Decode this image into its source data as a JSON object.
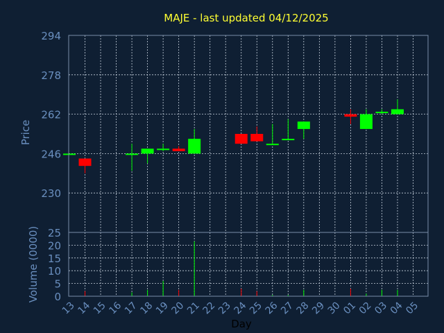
{
  "colors": {
    "background": "#0f1f33",
    "up": "#00ff00",
    "down": "#ff0000",
    "title": "#ffff33",
    "axis_text": "#6a8fbf",
    "grid": "#c8d2de"
  },
  "chart_data": {
    "type": "candlestick",
    "title": "MAJE - last updated 04/12/2025",
    "xlabel": "Day",
    "ylabel_price": "Price",
    "ylabel_volume": "Volume (0000)",
    "price_ylim": [
      214,
      294
    ],
    "price_ticks": [
      294,
      278,
      262,
      246,
      230
    ],
    "volume_ylim": [
      0,
      25
    ],
    "volume_ticks": [
      25,
      20,
      15,
      10,
      5,
      0
    ],
    "grid": true,
    "x_ticks": [
      "13",
      "14",
      "15",
      "16",
      "17",
      "18",
      "19",
      "20",
      "21",
      "22",
      "23",
      "24",
      "25",
      "26",
      "27",
      "28",
      "29",
      "30",
      "01",
      "02",
      "03",
      "04",
      "05"
    ],
    "candles": [
      {
        "day": "13",
        "open": 246,
        "close": 246,
        "high": 246,
        "low": 246,
        "volume": 0.0
      },
      {
        "day": "14",
        "open": 244,
        "close": 241,
        "high": 244,
        "low": 238,
        "volume": 2.0
      },
      {
        "day": "17",
        "open": 246,
        "close": 246,
        "high": 250,
        "low": 239,
        "volume": 1.5
      },
      {
        "day": "18",
        "open": 246,
        "close": 248,
        "high": 248,
        "low": 242,
        "volume": 2.5
      },
      {
        "day": "19",
        "open": 248,
        "close": 248,
        "high": 250,
        "low": 247,
        "volume": 6.0
      },
      {
        "day": "20",
        "open": 248,
        "close": 247,
        "high": 249,
        "low": 247,
        "volume": 2.5
      },
      {
        "day": "21",
        "open": 246,
        "close": 252,
        "high": 256,
        "low": 246,
        "volume": 21.5
      },
      {
        "day": "24",
        "open": 254,
        "close": 250,
        "high": 254,
        "low": 250,
        "volume": 3.0
      },
      {
        "day": "25",
        "open": 254,
        "close": 251,
        "high": 257,
        "low": 251,
        "volume": 2.0
      },
      {
        "day": "26",
        "open": 250,
        "close": 250,
        "high": 258,
        "low": 250,
        "volume": 0.5
      },
      {
        "day": "27",
        "open": 252,
        "close": 252,
        "high": 260,
        "low": 252,
        "volume": 0.5
      },
      {
        "day": "28",
        "open": 256,
        "close": 259,
        "high": 259,
        "low": 252,
        "volume": 2.5
      },
      {
        "day": "01",
        "open": 262,
        "close": 261,
        "high": 264,
        "low": 258,
        "volume": 3.0
      },
      {
        "day": "02",
        "open": 256,
        "close": 262,
        "high": 264,
        "low": 256,
        "volume": 1.0
      },
      {
        "day": "03",
        "open": 263,
        "close": 263,
        "high": 264,
        "low": 262,
        "volume": 2.5
      },
      {
        "day": "04",
        "open": 262,
        "close": 264,
        "high": 268,
        "low": 262,
        "volume": 2.5
      }
    ]
  }
}
